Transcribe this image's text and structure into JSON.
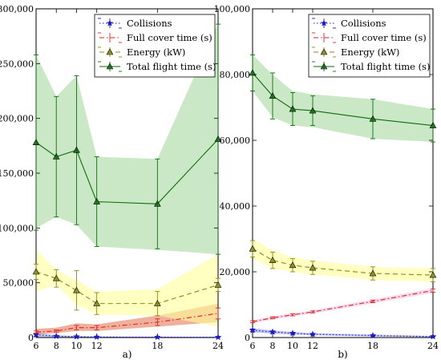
{
  "chart_data": [
    {
      "type": "line",
      "panel_label": "a)",
      "x": [
        6,
        8,
        10,
        12,
        18,
        24
      ],
      "xticks": [
        "6",
        "8",
        "10",
        "12",
        "18",
        "24"
      ],
      "xlim": [
        6,
        24
      ],
      "ylim": [
        0,
        300000
      ],
      "yticks": [
        "0",
        "50,000",
        "100,000",
        "150,000",
        "200,000",
        "250,000",
        "300,000"
      ],
      "legend_position": "top-right",
      "series": [
        {
          "name": "Collisions",
          "color": "#1a1acc",
          "linestyle": "dotted",
          "marker": "star",
          "values": [
            2500,
            1200,
            800,
            500,
            400,
            300
          ],
          "err": [
            1500,
            700,
            500,
            300,
            200,
            200
          ],
          "band": [
            [
              500,
              4500
            ],
            [
              300,
              2200
            ],
            [
              200,
              1500
            ],
            [
              100,
              900
            ],
            [
              100,
              700
            ],
            [
              50,
              600
            ]
          ],
          "band_color": "#9999ee"
        },
        {
          "name": "Full cover time (s)",
          "color": "#dd2222",
          "linestyle": "dashdot",
          "marker": "none",
          "values": [
            5000,
            6000,
            9000,
            9000,
            14000,
            22000
          ],
          "err": [
            1000,
            1000,
            2000,
            2000,
            3000,
            5000
          ],
          "band": [
            [
              3000,
              8000
            ],
            [
              4000,
              9000
            ],
            [
              6000,
              13000
            ],
            [
              6000,
              12000
            ],
            [
              10000,
              20000
            ],
            [
              14000,
              31000
            ]
          ],
          "band_color": "#e27b56"
        },
        {
          "name": "Energy (kW)",
          "color": "#8a8a10",
          "linestyle": "dashed",
          "marker": "triangle",
          "values": [
            60000,
            54000,
            43000,
            31000,
            31000,
            48000
          ],
          "err": [
            7000,
            8000,
            18000,
            10000,
            11000,
            6000
          ],
          "band": [
            [
              42000,
              80000
            ],
            [
              48000,
              62000
            ],
            [
              30000,
              52000
            ],
            [
              21000,
              42000
            ],
            [
              20000,
              44000
            ],
            [
              10000,
              76000
            ]
          ],
          "band_color": "#ffff99"
        },
        {
          "name": "Total flight time (s)",
          "color": "#0a6e0a",
          "linestyle": "solid",
          "marker": "triangle",
          "values": [
            178000,
            165000,
            171000,
            124000,
            122000,
            181000
          ],
          "err": [
            80000,
            55000,
            68000,
            41000,
            41000,
            105000
          ],
          "band": [
            [
              100000,
              258000
            ],
            [
              110000,
              220000
            ],
            [
              103000,
              239000
            ],
            [
              83000,
              165000
            ],
            [
              80000,
              163000
            ],
            [
              76000,
              287000
            ]
          ],
          "band_color": "#a8d8a0"
        }
      ]
    },
    {
      "type": "line",
      "panel_label": "b)",
      "x": [
        6,
        8,
        10,
        12,
        18,
        24
      ],
      "xticks": [
        "6",
        "8",
        "10",
        "12",
        "18",
        "24"
      ],
      "xlim": [
        6,
        24
      ],
      "ylim": [
        0,
        100000
      ],
      "yticks": [
        "0",
        "20,000",
        "40,000",
        "60,000",
        "80,000",
        "100,000"
      ],
      "legend_position": "top-right",
      "series": [
        {
          "name": "Collisions",
          "color": "#1a1acc",
          "linestyle": "dotted",
          "marker": "star",
          "values": [
            2200,
            1700,
            1300,
            1000,
            600,
            300
          ],
          "err": [
            400,
            300,
            300,
            200,
            200,
            100
          ],
          "band": [
            [
              1600,
              2800
            ],
            [
              1200,
              2200
            ],
            [
              900,
              1700
            ],
            [
              700,
              1300
            ],
            [
              300,
              900
            ],
            [
              100,
              500
            ]
          ],
          "band_color": "#9999ee"
        },
        {
          "name": "Full cover time (s)",
          "color": "#dd2222",
          "linestyle": "dashdot",
          "marker": "none",
          "values": [
            4800,
            6000,
            6900,
            7800,
            11000,
            14300
          ],
          "err": [
            300,
            300,
            300,
            300,
            400,
            500
          ],
          "band": [
            [
              4300,
              5300
            ],
            [
              5500,
              6500
            ],
            [
              6400,
              7400
            ],
            [
              7300,
              8300
            ],
            [
              10400,
              11600
            ],
            [
              13600,
              15000
            ]
          ],
          "band_color": "#f0c0e0"
        },
        {
          "name": "Energy (kW)",
          "color": "#8a8a10",
          "linestyle": "dashed",
          "marker": "triangle",
          "values": [
            27000,
            23500,
            22000,
            21200,
            19500,
            19000
          ],
          "err": [
            2500,
            2500,
            2000,
            2000,
            2000,
            2000
          ],
          "band": [
            [
              24000,
              30000
            ],
            [
              21000,
              26500
            ],
            [
              20000,
              24500
            ],
            [
              19200,
              23500
            ],
            [
              17500,
              21500
            ],
            [
              17000,
              21000
            ]
          ],
          "band_color": "#ffff99"
        },
        {
          "name": "Total flight time (s)",
          "color": "#0a6e0a",
          "linestyle": "solid",
          "marker": "triangle",
          "values": [
            80500,
            73500,
            69500,
            69000,
            66500,
            64500
          ],
          "err": [
            5500,
            7000,
            5000,
            4500,
            6000,
            5000
          ],
          "band": [
            [
              75000,
              86000
            ],
            [
              67000,
              80000
            ],
            [
              64500,
              75000
            ],
            [
              64000,
              74000
            ],
            [
              60500,
              72500
            ],
            [
              59500,
              69500
            ]
          ],
          "band_color": "#a8d8a0"
        }
      ]
    }
  ]
}
